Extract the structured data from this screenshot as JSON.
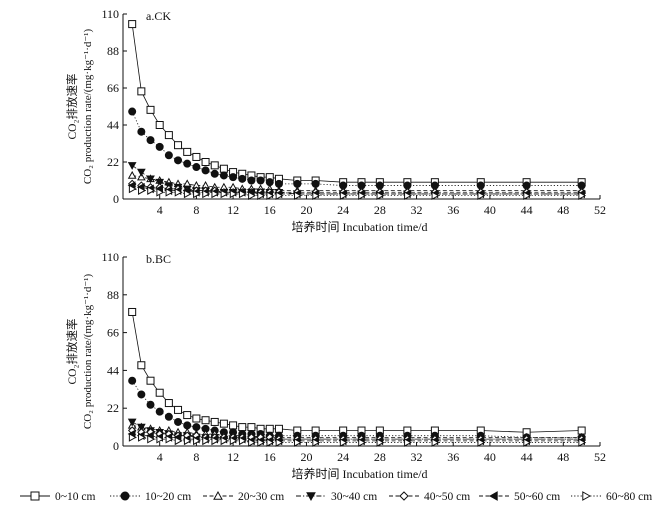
{
  "figure": {
    "ylabel_cn": "CO₂排放速率",
    "ylabel_en": "CO₂ production rate/(mg·kg⁻¹·d⁻¹)",
    "xlabel": "培养时间 Incubation time/d"
  },
  "chart_data": [
    {
      "type": "line",
      "panel_label": "a.CK",
      "xlabel": "培养时间 Incubation time/d",
      "ylabel": "CO₂排放速率 CO₂ production rate/(mg·kg⁻¹·d⁻¹)",
      "xlim": [
        0,
        52
      ],
      "ylim": [
        0,
        110
      ],
      "xticks": [
        "4",
        "8",
        "12",
        "16",
        "20",
        "24",
        "28",
        "32",
        "36",
        "40",
        "44",
        "48",
        "52"
      ],
      "yticks": [
        "0",
        "22",
        "44",
        "66",
        "88",
        "110"
      ],
      "x": [
        1,
        2,
        3,
        4,
        5,
        6,
        7,
        8,
        9,
        10,
        11,
        12,
        13,
        14,
        15,
        16,
        17,
        19,
        21,
        24,
        26,
        28,
        31,
        34,
        39,
        44,
        50
      ],
      "series": [
        {
          "name": "0~10 cm",
          "marker": "square-open",
          "line": "solid",
          "values": [
            104,
            64,
            53,
            44,
            38,
            32,
            28,
            25,
            22,
            20,
            18,
            16,
            15,
            14,
            13,
            13,
            12,
            11,
            11,
            10,
            10,
            10,
            10,
            10,
            10,
            10,
            10
          ]
        },
        {
          "name": "10~20 cm",
          "marker": "circle-filled",
          "line": "dotted",
          "values": [
            52,
            40,
            35,
            31,
            26,
            23,
            21,
            19,
            17,
            15,
            14,
            13,
            12,
            11,
            11,
            10,
            9,
            9,
            9,
            8,
            8,
            8,
            8,
            8,
            8,
            8,
            8
          ]
        },
        {
          "name": "20~30 cm",
          "marker": "triangle-up-open",
          "line": "dashed",
          "values": [
            14,
            13,
            12,
            11,
            10,
            9,
            9,
            8,
            8,
            7,
            7,
            7,
            6,
            6,
            6,
            6,
            5,
            5,
            5,
            5,
            5,
            5,
            5,
            5,
            5,
            5,
            5
          ]
        },
        {
          "name": "30~40 cm",
          "marker": "triangle-down-filled",
          "line": "dashdot",
          "values": [
            20,
            16,
            12,
            10,
            8,
            7,
            6,
            5,
            5,
            4,
            4,
            4,
            4,
            4,
            4,
            4,
            4,
            3,
            3,
            3,
            3,
            3,
            3,
            3,
            3,
            3,
            3
          ]
        },
        {
          "name": "40~50 cm",
          "marker": "diamond-open",
          "line": "dashed",
          "values": [
            9,
            8,
            7,
            7,
            6,
            6,
            5,
            5,
            5,
            5,
            4,
            4,
            4,
            4,
            4,
            4,
            4,
            4,
            4,
            4,
            4,
            4,
            4,
            4,
            4,
            4,
            4
          ]
        },
        {
          "name": "50~60 cm",
          "marker": "triangle-left-filled",
          "line": "dashed",
          "values": [
            8,
            7,
            6,
            6,
            5,
            5,
            5,
            4,
            4,
            4,
            4,
            4,
            4,
            4,
            3,
            3,
            3,
            3,
            3,
            3,
            3,
            3,
            3,
            3,
            3,
            3,
            3
          ]
        },
        {
          "name": "60~80 cm",
          "marker": "triangle-right-open",
          "line": "dotted",
          "values": [
            6,
            5,
            5,
            4,
            4,
            4,
            3,
            3,
            3,
            3,
            3,
            3,
            3,
            2,
            2,
            2,
            2,
            2,
            2,
            2,
            2,
            2,
            2,
            2,
            2,
            2,
            2
          ]
        }
      ]
    },
    {
      "type": "line",
      "panel_label": "b.BC",
      "xlabel": "培养时间 Incubation time/d",
      "ylabel": "CO₂排放速率 CO₂ production rate/(mg·kg⁻¹·d⁻¹)",
      "xlim": [
        0,
        52
      ],
      "ylim": [
        0,
        110
      ],
      "xticks": [
        "4",
        "8",
        "12",
        "16",
        "20",
        "24",
        "28",
        "32",
        "36",
        "40",
        "44",
        "48",
        "52"
      ],
      "yticks": [
        "0",
        "22",
        "44",
        "66",
        "88",
        "110"
      ],
      "x": [
        1,
        2,
        3,
        4,
        5,
        6,
        7,
        8,
        9,
        10,
        11,
        12,
        13,
        14,
        15,
        16,
        17,
        19,
        21,
        24,
        26,
        28,
        31,
        34,
        39,
        44,
        50
      ],
      "series": [
        {
          "name": "0~10 cm",
          "marker": "square-open",
          "line": "solid",
          "values": [
            78,
            47,
            38,
            31,
            25,
            21,
            18,
            16,
            15,
            14,
            13,
            12,
            11,
            11,
            10,
            10,
            10,
            9,
            9,
            9,
            9,
            9,
            9,
            9,
            9,
            8,
            9
          ]
        },
        {
          "name": "10~20 cm",
          "marker": "circle-filled",
          "line": "dotted",
          "values": [
            38,
            30,
            24,
            20,
            17,
            14,
            12,
            11,
            10,
            9,
            8,
            8,
            7,
            7,
            7,
            6,
            6,
            6,
            6,
            6,
            6,
            6,
            6,
            6,
            6,
            5,
            5
          ]
        },
        {
          "name": "20~30 cm",
          "marker": "triangle-up-open",
          "line": "dashed",
          "values": [
            12,
            11,
            10,
            9,
            9,
            8,
            8,
            7,
            7,
            7,
            6,
            6,
            6,
            6,
            5,
            5,
            5,
            5,
            5,
            5,
            5,
            5,
            5,
            5,
            5,
            5,
            5
          ]
        },
        {
          "name": "30~40 cm",
          "marker": "triangle-down-filled",
          "line": "dashdot",
          "values": [
            14,
            11,
            9,
            8,
            7,
            6,
            6,
            5,
            5,
            5,
            4,
            4,
            4,
            4,
            4,
            4,
            4,
            4,
            4,
            4,
            4,
            4,
            4,
            4,
            4,
            4,
            4
          ]
        },
        {
          "name": "40~50 cm",
          "marker": "diamond-open",
          "line": "dashed",
          "values": [
            9,
            8,
            8,
            7,
            7,
            6,
            6,
            6,
            5,
            5,
            5,
            5,
            5,
            5,
            5,
            5,
            4,
            4,
            4,
            4,
            4,
            4,
            4,
            4,
            4,
            4,
            4
          ]
        },
        {
          "name": "50~60 cm",
          "marker": "triangle-left-filled",
          "line": "dashed",
          "values": [
            7,
            6,
            6,
            5,
            5,
            5,
            4,
            4,
            4,
            4,
            4,
            4,
            4,
            3,
            3,
            3,
            3,
            3,
            3,
            3,
            3,
            3,
            3,
            3,
            3,
            3,
            3
          ]
        },
        {
          "name": "60~80 cm",
          "marker": "triangle-right-open",
          "line": "dotted",
          "values": [
            5,
            5,
            4,
            4,
            4,
            3,
            3,
            3,
            3,
            3,
            3,
            3,
            3,
            2,
            2,
            2,
            2,
            2,
            2,
            2,
            2,
            2,
            2,
            2,
            2,
            2,
            2
          ]
        }
      ]
    }
  ],
  "legend": {
    "position": "bottom",
    "items": [
      {
        "label": "0~10 cm",
        "marker": "square-open",
        "line": "solid"
      },
      {
        "label": "10~20 cm",
        "marker": "circle-filled",
        "line": "dotted"
      },
      {
        "label": "20~30 cm",
        "marker": "triangle-up-open",
        "line": "dashed"
      },
      {
        "label": "30~40 cm",
        "marker": "triangle-down-filled",
        "line": "dashdot"
      },
      {
        "label": "40~50 cm",
        "marker": "diamond-open",
        "line": "dashed"
      },
      {
        "label": "50~60 cm",
        "marker": "triangle-left-filled",
        "line": "dashed"
      },
      {
        "label": "60~80 cm",
        "marker": "triangle-right-open",
        "line": "dotted"
      }
    ]
  }
}
